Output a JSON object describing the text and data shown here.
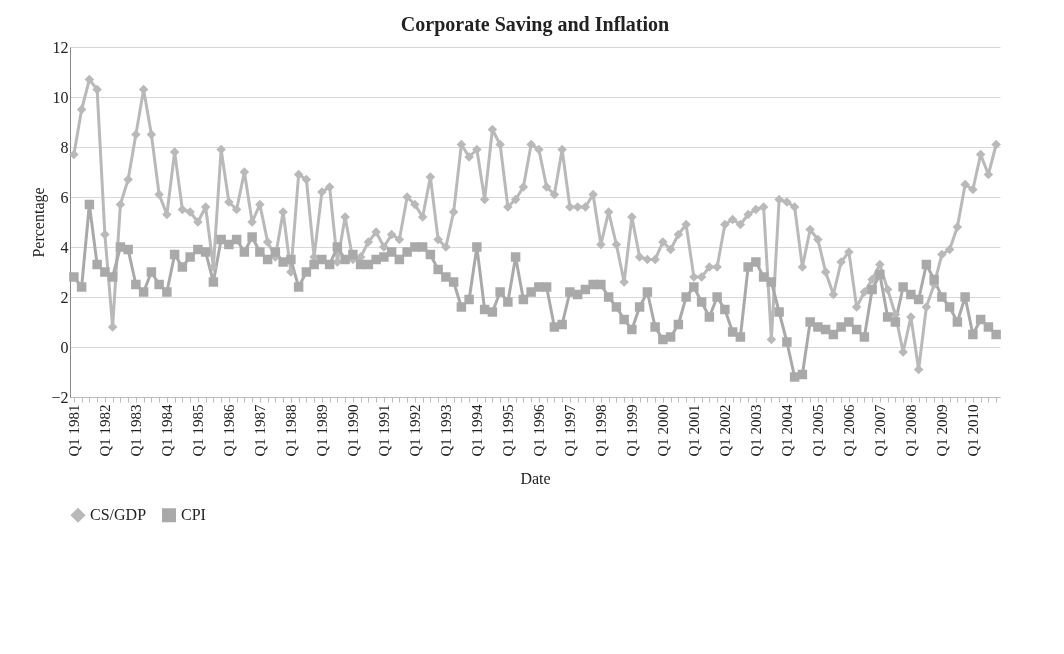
{
  "chart_data": {
    "type": "line",
    "title": "Corporate Saving and Inflation",
    "xlabel": "Date",
    "ylabel": "Percentage",
    "categories": [
      "Q1 1981",
      null,
      null,
      null,
      "Q1 1982",
      null,
      null,
      null,
      "Q1 1983",
      null,
      null,
      null,
      "Q1 1984",
      null,
      null,
      null,
      "Q1 1985",
      null,
      null,
      null,
      "Q1 1986",
      null,
      null,
      null,
      "Q1 1987",
      null,
      null,
      null,
      "Q1 1988",
      null,
      null,
      null,
      "Q1 1989",
      null,
      null,
      null,
      "Q1 1990",
      null,
      null,
      null,
      "Q1 1991",
      null,
      null,
      null,
      "Q1 1992",
      null,
      null,
      null,
      "Q1 1993",
      null,
      null,
      null,
      "Q1 1994",
      null,
      null,
      null,
      "Q1 1995",
      null,
      null,
      null,
      "Q1 1996",
      null,
      null,
      null,
      "Q1 1997",
      null,
      null,
      null,
      "Q1 1998",
      null,
      null,
      null,
      "Q1 1999",
      null,
      null,
      null,
      "Q1 2000",
      null,
      null,
      null,
      "Q1 2001",
      null,
      null,
      null,
      "Q1 2002",
      null,
      null,
      null,
      "Q1 2003",
      null,
      null,
      null,
      "Q1 2004",
      null,
      null,
      null,
      "Q1 2005",
      null,
      null,
      null,
      "Q1 2006",
      null,
      null,
      null,
      "Q1 2007",
      null,
      null,
      null,
      "Q1 2008",
      null,
      null,
      null,
      "Q1 2009",
      null,
      null,
      null,
      "Q1 2010",
      null,
      null,
      null
    ],
    "series": [
      {
        "name": "CS/GDP",
        "color": "#b9b9b9",
        "marker": "diamond",
        "values": [
          7.7,
          9.5,
          10.7,
          10.3,
          4.5,
          0.8,
          5.7,
          6.7,
          8.5,
          10.3,
          8.5,
          6.1,
          5.3,
          7.8,
          5.5,
          5.4,
          5.0,
          5.6,
          3.2,
          7.9,
          5.8,
          5.5,
          7.0,
          5.0,
          5.7,
          4.2,
          3.6,
          5.4,
          3.0,
          6.9,
          6.7,
          3.6,
          6.2,
          6.4,
          3.4,
          5.2,
          3.5,
          3.6,
          4.2,
          4.6,
          4.0,
          4.5,
          4.3,
          6.0,
          5.7,
          5.2,
          6.8,
          4.3,
          4.0,
          5.4,
          8.1,
          7.6,
          7.9,
          5.9,
          8.7,
          8.1,
          5.6,
          5.9,
          6.4,
          8.1,
          7.9,
          6.4,
          6.1,
          7.9,
          5.6,
          5.6,
          5.6,
          6.1,
          4.1,
          5.4,
          4.1,
          2.6,
          5.2,
          3.6,
          3.5,
          3.5,
          4.2,
          3.9,
          4.5,
          4.9,
          2.8,
          2.8,
          3.2,
          3.2,
          4.9,
          5.1,
          4.9,
          5.3,
          5.5,
          5.6,
          0.3,
          5.9,
          5.8,
          5.6,
          3.2,
          4.7,
          4.3,
          3.0,
          2.1,
          3.4,
          3.8,
          1.6,
          2.2,
          2.7,
          3.3,
          2.3,
          1.3,
          -0.2,
          1.2,
          -0.9,
          1.6,
          2.5,
          3.7,
          3.9,
          4.8,
          6.5,
          6.3,
          7.7,
          6.9,
          8.1
        ]
      },
      {
        "name": "CPI",
        "color": "#a9a9a9",
        "marker": "square",
        "values": [
          2.8,
          2.4,
          5.7,
          3.3,
          3.0,
          2.8,
          4.0,
          3.9,
          2.5,
          2.2,
          3.0,
          2.5,
          2.2,
          3.7,
          3.2,
          3.6,
          3.9,
          3.8,
          2.6,
          4.3,
          4.1,
          4.3,
          3.8,
          4.4,
          3.8,
          3.5,
          3.8,
          3.4,
          3.5,
          2.4,
          3.0,
          3.3,
          3.5,
          3.3,
          4.0,
          3.5,
          3.7,
          3.3,
          3.3,
          3.5,
          3.6,
          3.8,
          3.5,
          3.8,
          4.0,
          4.0,
          3.7,
          3.1,
          2.8,
          2.6,
          1.6,
          1.9,
          4.0,
          1.5,
          1.4,
          2.2,
          1.8,
          3.6,
          1.9,
          2.2,
          2.4,
          2.4,
          0.8,
          0.9,
          2.2,
          2.1,
          2.3,
          2.5,
          2.5,
          2.0,
          1.6,
          1.1,
          0.7,
          1.6,
          2.2,
          0.8,
          0.3,
          0.4,
          0.9,
          2.0,
          2.4,
          1.8,
          1.2,
          2.0,
          1.5,
          0.6,
          0.4,
          3.2,
          3.4,
          2.8,
          2.6,
          1.4,
          0.2,
          -1.2,
          -1.1,
          1.0,
          0.8,
          0.7,
          0.5,
          0.8,
          1.0,
          0.7,
          0.4,
          2.3,
          2.9,
          1.2,
          1.0,
          2.4,
          2.1,
          1.9,
          3.3,
          2.7,
          2.0,
          1.6,
          1.0,
          2.0,
          0.5,
          1.1,
          0.8,
          0.5
        ]
      }
    ],
    "ylim": [
      -2,
      12
    ],
    "yticks": [
      -2,
      0,
      2,
      4,
      6,
      8,
      10,
      12
    ],
    "grid": "y",
    "legend": "bottom",
    "line_style": "solid"
  }
}
